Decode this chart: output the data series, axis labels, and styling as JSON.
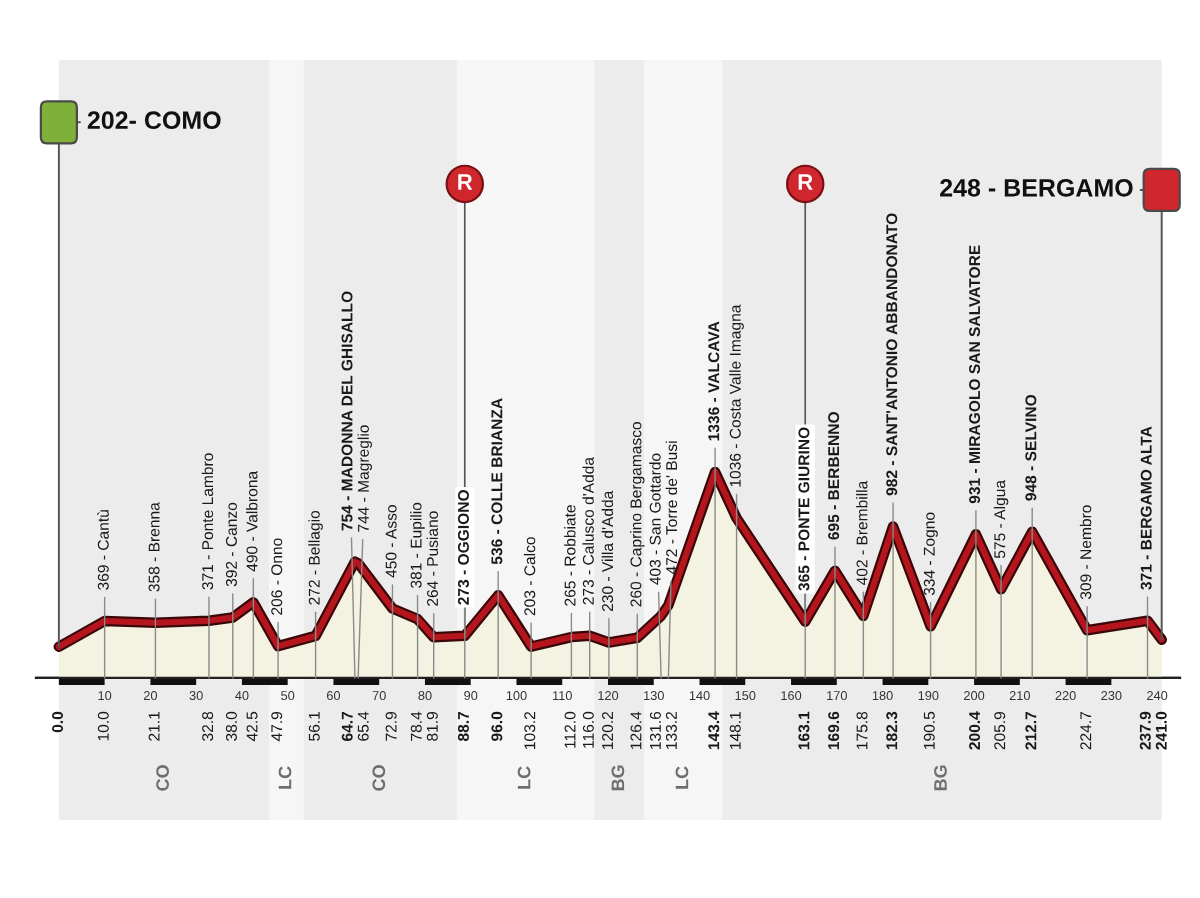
{
  "chart_data": {
    "type": "area",
    "color": "#b5161d",
    "x": [
      0.0,
      10.0,
      21.1,
      32.8,
      38.0,
      42.5,
      47.9,
      56.1,
      64.7,
      65.4,
      72.9,
      78.4,
      81.9,
      88.7,
      96.0,
      103.2,
      112.0,
      116.0,
      120.2,
      126.4,
      131.6,
      133.2,
      143.4,
      148.1,
      163.1,
      169.6,
      175.8,
      182.3,
      190.5,
      200.4,
      205.9,
      212.7,
      224.7,
      237.9,
      241.0
    ],
    "values": [
      202,
      369,
      358,
      371,
      392,
      490,
      206,
      272,
      754,
      744,
      450,
      381,
      264,
      273,
      536,
      203,
      265,
      273,
      230,
      260,
      403,
      472,
      1336,
      1036,
      365,
      695,
      402,
      982,
      334,
      931,
      575,
      948,
      309,
      371,
      248
    ],
    "value_labels": [
      null,
      "369 - Cantù",
      "358 - Brenna",
      "371 - Ponte Lambro",
      "392 - Canzo",
      "490 - Valbrona",
      "206 - Onno",
      "272 - Bellagio",
      "754 - MADONNA DEL GHISALLO",
      "744 - Magreglio",
      "450 - Asso",
      "381 - Eupilio",
      "264 - Pusiano",
      "273 - OGGIONO",
      "536 - COLLE BRIANZA",
      "203 - Calco",
      "265 - Robbiate",
      "273 - Calusco d'Adda",
      "230 - Villa d'Adda",
      "260 - Caprino Bergamasco",
      "403 - San Gottardo",
      "472 - Torre de' Busi",
      "1336 - VALCAVA",
      "1036 - Costa Valle Imagna",
      "365 - PONTE GIURINO",
      "695 - BERBENNO",
      "402 - Brembilla",
      "982 - SANT'ANTONIO ABBANDONATO",
      "334 - Zogno",
      "931 - MIRAGOLO SAN SALVATORE",
      "575 - Algua",
      "948 - SELVINO",
      "309 - Nembro",
      "371 - BERGAMO ALTA",
      null
    ],
    "xlim": [
      -5,
      245
    ],
    "xticks": [
      {
        "value": 0.0,
        "label": "0.0"
      },
      {
        "value": 10.0,
        "label": "10.0"
      },
      {
        "value": 21.1,
        "label": "21.1"
      },
      {
        "value": 32.8,
        "label": "32.8"
      },
      {
        "value": 38.0,
        "label": "38.0"
      },
      {
        "value": 42.5,
        "label": "42.5"
      },
      {
        "value": 47.9,
        "label": "47.9"
      },
      {
        "value": 56.1,
        "label": "56.1"
      },
      {
        "value": 64.7,
        "label": "64.7"
      },
      {
        "value": 65.4,
        "label": "65.4"
      },
      {
        "value": 72.9,
        "label": "72.9"
      },
      {
        "value": 78.4,
        "label": "78.4"
      },
      {
        "value": 81.9,
        "label": "81.9"
      },
      {
        "value": 88.7,
        "label": "88.7"
      },
      {
        "value": 96.0,
        "label": "96.0"
      },
      {
        "value": 103.2,
        "label": "103.2"
      },
      {
        "value": 112.0,
        "label": "112.0"
      },
      {
        "value": 116.0,
        "label": "116.0"
      },
      {
        "value": 120.2,
        "label": "120.2"
      },
      {
        "value": 126.4,
        "label": "126.4"
      },
      {
        "value": 131.6,
        "label": "131.6"
      },
      {
        "value": 133.2,
        "label": "133.2"
      },
      {
        "value": 143.4,
        "label": "143.4"
      },
      {
        "value": 148.1,
        "label": "148.1"
      },
      {
        "value": 163.1,
        "label": "163.1"
      },
      {
        "value": 169.6,
        "label": "169.6"
      },
      {
        "value": 175.8,
        "label": "175.8"
      },
      {
        "value": 182.3,
        "label": "182.3"
      },
      {
        "value": 190.5,
        "label": "190.5"
      },
      {
        "value": 200.4,
        "label": "200.4"
      },
      {
        "value": 205.9,
        "label": "205.9"
      },
      {
        "value": 212.7,
        "label": "212.7"
      },
      {
        "value": 224.7,
        "label": "224.7"
      },
      {
        "value": 237.9,
        "label": "237.9"
      },
      {
        "value": 241.0,
        "label": "241.0"
      }
    ],
    "x2lim": [
      -5,
      245
    ],
    "x2ticks": [
      10,
      20,
      30,
      40,
      50,
      60,
      70,
      80,
      90,
      100,
      110,
      120,
      130,
      140,
      150,
      160,
      170,
      180,
      190,
      200,
      210,
      220,
      230,
      240
    ],
    "tick_labels": "x",
    "bands": [
      {
        "axis": "x",
        "from": 0,
        "to": 46,
        "label": "CO",
        "color": "#ececec"
      },
      {
        "axis": "x",
        "from": 46,
        "to": 53.5,
        "label": "LC",
        "color": "#f6f6f6"
      },
      {
        "axis": "x",
        "from": 53.5,
        "to": 87,
        "label": "CO",
        "color": "#ececec"
      },
      {
        "axis": "x",
        "from": 87,
        "to": 117,
        "label": "LC",
        "color": "#f6f6f6"
      },
      {
        "axis": "x",
        "from": 117,
        "to": 128,
        "label": "BG",
        "color": "#ececec"
      },
      {
        "axis": "x",
        "from": 128,
        "to": 145,
        "label": "LC",
        "color": "#f6f6f6"
      },
      {
        "axis": "x",
        "from": 145,
        "to": 241,
        "label": "BG",
        "color": "#ececec"
      }
    ],
    "annotations": [
      {
        "text": "202- COMO",
        "x": 0.0,
        "y": 202
      },
      {
        "text": "R",
        "x": 88.7,
        "y": 273
      },
      {
        "text": "R",
        "x": 163.1,
        "y": 365
      },
      {
        "text": "248 - BERGAMO",
        "x": 241.0,
        "y": 248
      }
    ]
  }
}
